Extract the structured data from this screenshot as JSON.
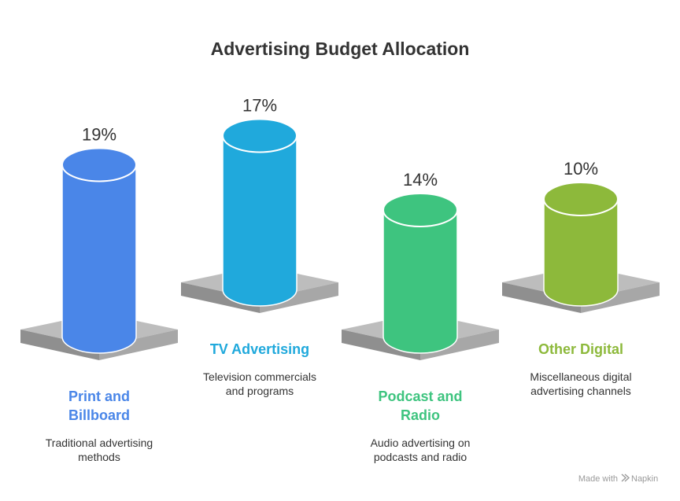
{
  "chart_data": {
    "type": "bar",
    "title": "Advertising Budget Allocation",
    "categories": [
      "Print and Billboard",
      "TV Advertising",
      "Podcast and Radio",
      "Other Digital"
    ],
    "values": [
      19,
      17,
      14,
      10
    ],
    "value_labels": [
      "19%",
      "17%",
      "14%",
      "10%"
    ],
    "descriptions": [
      [
        "Traditional advertising",
        "methods"
      ],
      [
        "Television commercials",
        "and programs"
      ],
      [
        "Audio advertising on",
        "podcasts and radio"
      ],
      [
        "Miscellaneous digital",
        "advertising channels"
      ]
    ],
    "category_label_lines": [
      [
        "Print and",
        "Billboard"
      ],
      [
        "TV Advertising"
      ],
      [
        "Podcast and",
        "Radio"
      ],
      [
        "Other Digital"
      ]
    ],
    "colors": [
      "#4a86e8",
      "#20a9dc",
      "#3ec47f",
      "#8db93b"
    ],
    "label_colors": [
      "#4a86e8",
      "#20a9dc",
      "#3ec47f",
      "#8db93b"
    ],
    "unit": "%"
  },
  "watermark": {
    "prefix": "Made with",
    "brand": "Napkin",
    "icon": "napkin-logo-icon"
  }
}
